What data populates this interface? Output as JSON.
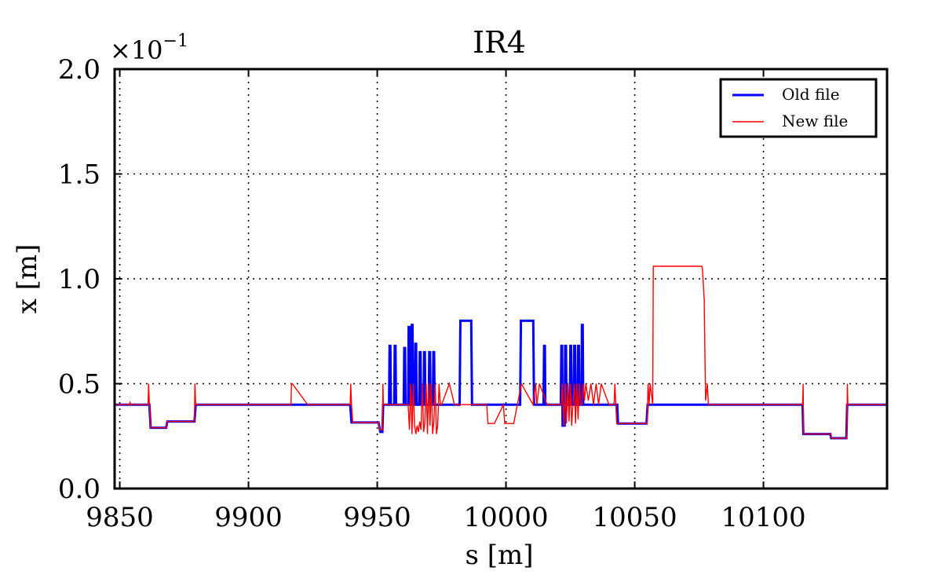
{
  "chart_data": {
    "type": "line",
    "title": "IR4",
    "xlabel": "s [m]",
    "ylabel": "x [m]",
    "y_multiplier_base": "×10",
    "y_multiplier_exp": "−1",
    "xlim": [
      9848,
      10148
    ],
    "ylim": [
      0.0,
      2.0
    ],
    "xticks": [
      9850,
      9900,
      9950,
      10000,
      10050,
      10100
    ],
    "xtick_labels": [
      "9850",
      "9900",
      "9950",
      "10000",
      "10050",
      "10100"
    ],
    "yticks": [
      0.0,
      0.5,
      1.0,
      1.5,
      2.0
    ],
    "ytick_labels": [
      "0.0",
      "0.5",
      "1.0",
      "1.5",
      "2.0"
    ],
    "grid": true,
    "legend_position": "top-right",
    "series": [
      {
        "name": "Old file",
        "color": "#0000ff",
        "x": [
          9848,
          9861.5,
          9862,
          9868,
          9868.5,
          9879,
          9879.5,
          9939.5,
          9940,
          9950.5,
          9951.2,
          9952,
          9952.3,
          9954.6,
          9954.8,
          9955.1,
          9955.3,
          9956.6,
          9956.8,
          9957.1,
          9957.3,
          9960.3,
          9960.5,
          9960.8,
          9961,
          9962,
          9962.2,
          9962.5,
          9962.7,
          9963.2,
          9963.4,
          9963.7,
          9963.9,
          9964.6,
          9964.8,
          9965.1,
          9965.3,
          9966.3,
          9966.5,
          9966.8,
          9967,
          9968,
          9968.2,
          9968.5,
          9968.7,
          9970,
          9970.2,
          9970.5,
          9970.7,
          9971.6,
          9971.8,
          9972.1,
          9972.3,
          9982,
          9982.3,
          9986.5,
          9986.8,
          10005.5,
          10005.8,
          10010.6,
          10010.9,
          10014.6,
          10014.8,
          10015.1,
          10015.3,
          10021.3,
          10021.5,
          10021.8,
          10022,
          10022.8,
          10023,
          10023.3,
          10023.5,
          10024.8,
          10025,
          10025.3,
          10025.5,
          10026.3,
          10026.5,
          10026.8,
          10027,
          10027.8,
          10028,
          10028.3,
          10028.5,
          10029.3,
          10029.5,
          10029.8,
          10030,
          10043.2,
          10043.5,
          10054.6,
          10055,
          10115.2,
          10115.5,
          10126,
          10126.3,
          10132.2,
          10132.5,
          10148
        ],
        "y": [
          0.4,
          0.4,
          0.29,
          0.29,
          0.32,
          0.32,
          0.4,
          0.4,
          0.315,
          0.315,
          0.27,
          0.27,
          0.4,
          0.4,
          0.68,
          0.68,
          0.4,
          0.4,
          0.68,
          0.68,
          0.4,
          0.4,
          0.67,
          0.67,
          0.4,
          0.4,
          0.77,
          0.77,
          0.4,
          0.4,
          0.78,
          0.78,
          0.4,
          0.4,
          0.69,
          0.69,
          0.4,
          0.4,
          0.65,
          0.65,
          0.4,
          0.4,
          0.65,
          0.65,
          0.4,
          0.4,
          0.65,
          0.65,
          0.4,
          0.4,
          0.65,
          0.65,
          0.4,
          0.4,
          0.8,
          0.8,
          0.4,
          0.4,
          0.8,
          0.8,
          0.4,
          0.4,
          0.68,
          0.68,
          0.4,
          0.4,
          0.68,
          0.68,
          0.3,
          0.3,
          0.68,
          0.68,
          0.4,
          0.4,
          0.68,
          0.68,
          0.4,
          0.4,
          0.68,
          0.68,
          0.4,
          0.4,
          0.68,
          0.68,
          0.4,
          0.4,
          0.78,
          0.78,
          0.4,
          0.4,
          0.31,
          0.31,
          0.4,
          0.4,
          0.26,
          0.26,
          0.24,
          0.24,
          0.4,
          0.4
        ]
      },
      {
        "name": "New file",
        "color": "#ff0000",
        "x": [
          9848,
          9853.8,
          9854,
          9854.3,
          9861,
          9861.2,
          9861.5,
          9862,
          9868,
          9868.5,
          9879,
          9879.2,
          9879.5,
          9880,
          9916.5,
          9916.7,
          9917,
          9923,
          9939.5,
          9939.7,
          9940,
          9940.5,
          9950.5,
          9951,
          9952,
          9952.2,
          9952.4,
          9954,
          9962,
          9962.5,
          9963,
          9963.5,
          9964,
          9964.5,
          9965,
          9965.5,
          9966,
          9966.5,
          9967,
          9967.5,
          9968,
          9968.5,
          9969,
          9969.5,
          9970,
          9970.5,
          9971,
          9971.5,
          9972,
          9972.5,
          9973,
          9973.5,
          9974,
          9974.5,
          9975,
          9978,
          9980,
          9985,
          9990,
          9992.5,
          9993,
          9995.5,
          9999,
          9999.5,
          10001,
          10003,
          10006,
          10010.5,
          10011.5,
          10012,
          10013,
          10016,
          10021.5,
          10021.8,
          10022.5,
          10023,
          10023.5,
          10024,
          10024.5,
          10025,
          10025.5,
          10026,
          10026.5,
          10027,
          10027.5,
          10028,
          10028.5,
          10029,
          10029.5,
          10030,
          10030.5,
          10031,
          10032,
          10033,
          10034,
          10035,
          10036,
          10037,
          10040,
          10042,
          10042.3,
          10043,
          10054.8,
          10055.2,
          10055.6,
          10056,
          10057,
          10057.2,
          10076,
          10076.3,
          10077,
          10077.5,
          10078.2,
          10078.6,
          10079.3,
          10115.2,
          10115.4,
          10115.6,
          10126.2,
          10126.4,
          10132.4,
          10132.6,
          10132.8,
          10148
        ],
        "y": [
          0.4,
          0.4,
          0.41,
          0.4,
          0.4,
          0.5,
          0.4,
          0.29,
          0.29,
          0.32,
          0.32,
          0.5,
          0.4,
          0.4,
          0.4,
          0.5,
          0.5,
          0.4,
          0.4,
          0.5,
          0.4,
          0.315,
          0.315,
          0.28,
          0.28,
          0.5,
          0.4,
          0.4,
          0.4,
          0.28,
          0.5,
          0.26,
          0.5,
          0.3,
          0.26,
          0.3,
          0.27,
          0.32,
          0.28,
          0.5,
          0.27,
          0.31,
          0.5,
          0.26,
          0.5,
          0.3,
          0.5,
          0.26,
          0.32,
          0.5,
          0.26,
          0.3,
          0.5,
          0.4,
          0.4,
          0.5,
          0.4,
          0.4,
          0.4,
          0.4,
          0.31,
          0.31,
          0.4,
          0.31,
          0.31,
          0.31,
          0.5,
          0.4,
          0.5,
          0.4,
          0.5,
          0.4,
          0.4,
          0.5,
          0.3,
          0.5,
          0.31,
          0.5,
          0.32,
          0.5,
          0.3,
          0.4,
          0.5,
          0.31,
          0.5,
          0.33,
          0.5,
          0.4,
          0.4,
          0.5,
          0.42,
          0.5,
          0.42,
          0.5,
          0.4,
          0.5,
          0.4,
          0.5,
          0.4,
          0.4,
          0.5,
          0.31,
          0.31,
          0.5,
          0.4,
          0.5,
          0.4,
          1.06,
          1.06,
          1.05,
          0.9,
          0.42,
          0.5,
          0.4,
          0.4,
          0.4,
          0.5,
          0.26,
          0.26,
          0.24,
          0.24,
          0.5,
          0.4,
          0.4
        ]
      }
    ]
  }
}
